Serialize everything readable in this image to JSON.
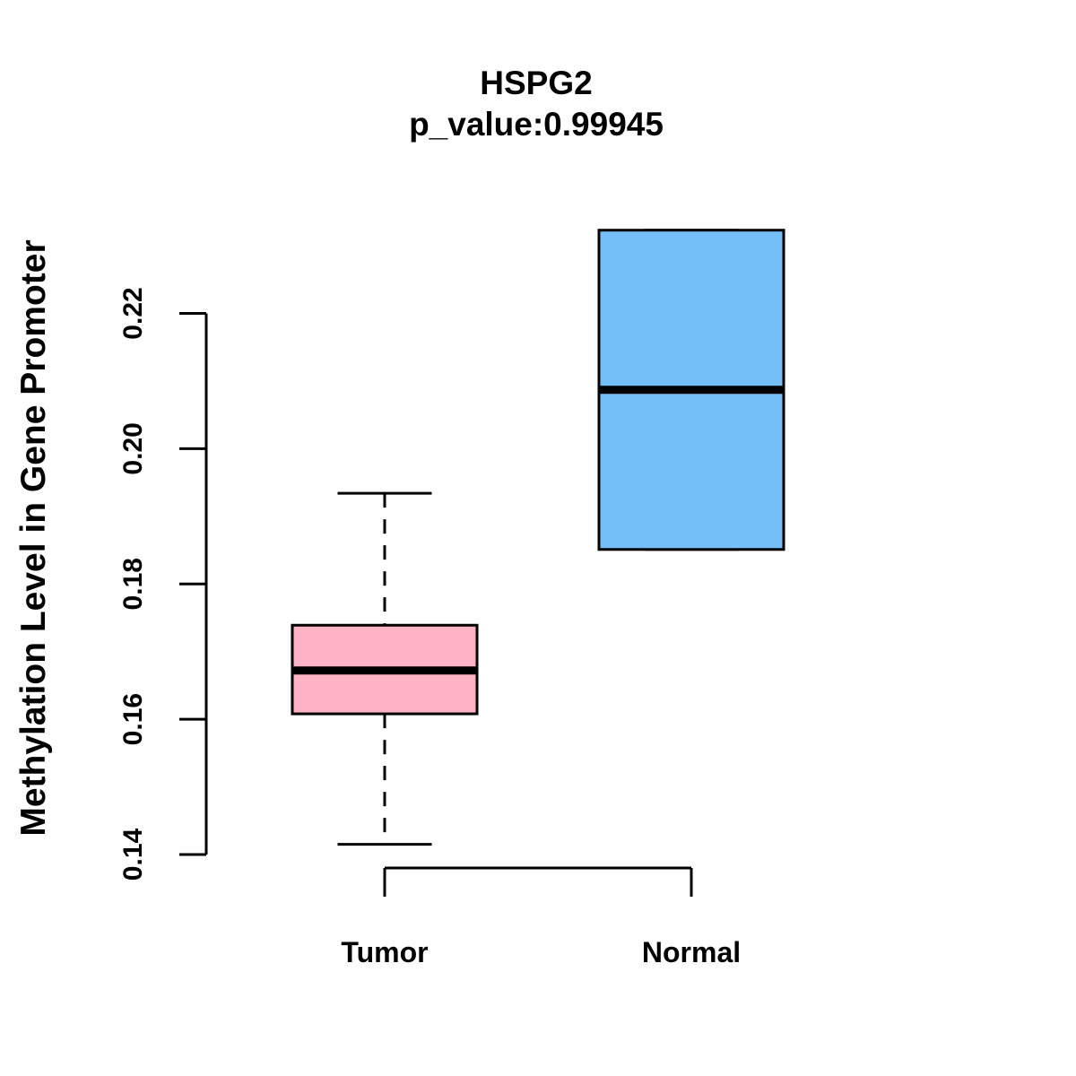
{
  "chart_data": {
    "type": "boxplot",
    "title": "HSPG2",
    "subtitle": "p_value:0.99945",
    "p_value": "0.99945",
    "gene": "HSPG2",
    "ylabel": "Methylation Level in Gene Promoter",
    "xlabel": "",
    "categories": [
      "Tumor",
      "Normal"
    ],
    "y_ticks": [
      "0.14",
      "0.16",
      "0.18",
      "0.20",
      "0.22"
    ],
    "ylim": [
      0.14,
      0.235
    ],
    "grid": false,
    "legend": "none",
    "series": [
      {
        "name": "Tumor",
        "fill_color": "#FFB3C4",
        "border_color": "#000000",
        "whisker_low": 0.1415,
        "q1": 0.1608,
        "median": 0.1672,
        "q3": 0.1739,
        "whisker_high": 0.1934,
        "whisker_style": "dashed"
      },
      {
        "name": "Normal",
        "fill_color": "#74BFF7",
        "border_color": "#000000",
        "whisker_low": 0.1851,
        "q1": 0.1851,
        "median": 0.2087,
        "q3": 0.2323,
        "whisker_high": 0.2323,
        "whisker_style": "dashed"
      }
    ]
  }
}
